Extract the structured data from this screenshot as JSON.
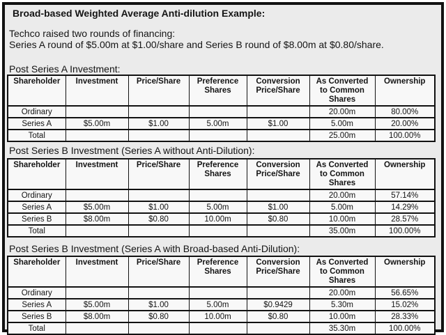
{
  "document": {
    "title": "Broad-based Weighted Average Anti-dilution Example:",
    "intro_line1": "Techco raised two rounds of financing:",
    "intro_line2": "Series A round of $5.00m at $1.00/share and Series B round of $8.00m at $0.80/share."
  },
  "columns": [
    "Shareholder",
    "Investment",
    "Price/Share",
    "Preference Shares",
    "Conversion Price/Share",
    "As Converted to Common Shares",
    "Ownership"
  ],
  "tables": [
    {
      "heading": "Post Series A Investment:",
      "rows": [
        [
          "Ordinary",
          "",
          "",
          "",
          "",
          "20.00m",
          "80.00%"
        ],
        [
          "Series A",
          "$5.00m",
          "$1.00",
          "5.00m",
          "$1.00",
          "5.00m",
          "20.00%"
        ],
        [
          "Total",
          "",
          "",
          "",
          "",
          "25.00m",
          "100.00%"
        ]
      ]
    },
    {
      "heading": "Post Series B Investment (Series A without Anti-Dilution):",
      "rows": [
        [
          "Ordinary",
          "",
          "",
          "",
          "",
          "20.00m",
          "57.14%"
        ],
        [
          "Series A",
          "$5.00m",
          "$1.00",
          "5.00m",
          "$1.00",
          "5.00m",
          "14.29%"
        ],
        [
          "Series B",
          "$8.00m",
          "$0.80",
          "10.00m",
          "$0.80",
          "10.00m",
          "28.57%"
        ],
        [
          "Total",
          "",
          "",
          "",
          "",
          "35.00m",
          "100.00%"
        ]
      ]
    },
    {
      "heading": "Post Series B Investment (Series A with Broad-based Anti-Dilution):",
      "rows": [
        [
          "Ordinary",
          "",
          "",
          "",
          "",
          "20.00m",
          "56.65%"
        ],
        [
          "Series A",
          "$5.00m",
          "$1.00",
          "5.00m",
          "$0.9429",
          "5.30m",
          "15.02%"
        ],
        [
          "Series B",
          "$8.00m",
          "$0.80",
          "10.00m",
          "$0.80",
          "10.00m",
          "28.33%"
        ],
        [
          "Total",
          "",
          "",
          "",
          "",
          "35.30m",
          "100.00%"
        ]
      ]
    }
  ]
}
